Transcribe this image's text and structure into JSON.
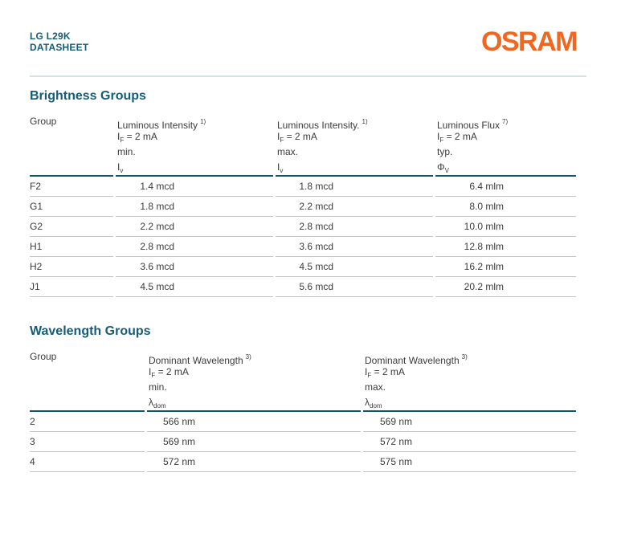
{
  "header": {
    "product": "LG L29K",
    "doc_type": "DATASHEET",
    "brand": "OSRAM"
  },
  "colors": {
    "teal": "#155d76",
    "orange": "#f2671f",
    "dark": "#14566c",
    "light": "#c6c6c6",
    "text": "#3b3b3b",
    "divider": "#d9e0e4"
  },
  "brightness": {
    "title": "Brightness Groups",
    "columns": [
      {
        "label": "Group"
      },
      {
        "title": "Luminous Intensity",
        "footnote": "1)",
        "cond_sym": "I",
        "cond_sub": "F",
        "cond_rest": " = 2 mA",
        "limit": "min.",
        "sym": "I",
        "sym_sub": "v"
      },
      {
        "title": "Luminous Intensity.",
        "footnote": "1)",
        "cond_sym": "I",
        "cond_sub": "F",
        "cond_rest": " = 2 mA",
        "limit": "max.",
        "sym": "I",
        "sym_sub": "v"
      },
      {
        "title": "Luminous Flux",
        "footnote": "7)",
        "cond_sym": "I",
        "cond_sub": "F",
        "cond_rest": " = 2 mA",
        "limit": "typ.",
        "sym": "Φ",
        "sym_sub": "V"
      }
    ],
    "rows": [
      {
        "group": "F2",
        "min": "1.4 mcd",
        "max": "1.8 mcd",
        "flux": "6.4 mlm"
      },
      {
        "group": "G1",
        "min": "1.8 mcd",
        "max": "2.2 mcd",
        "flux": "8.0 mlm"
      },
      {
        "group": "G2",
        "min": "2.2 mcd",
        "max": "2.8 mcd",
        "flux": "10.0 mlm"
      },
      {
        "group": "H1",
        "min": "2.8 mcd",
        "max": "3.6 mcd",
        "flux": "12.8 mlm"
      },
      {
        "group": "H2",
        "min": "3.6 mcd",
        "max": "4.5 mcd",
        "flux": "16.2 mlm"
      },
      {
        "group": "J1",
        "min": "4.5 mcd",
        "max": "5.6 mcd",
        "flux": "20.2 mlm"
      }
    ]
  },
  "wavelength": {
    "title": "Wavelength Groups",
    "columns": [
      {
        "label": "Group"
      },
      {
        "title": "Dominant Wavelength",
        "footnote": "3)",
        "cond_sym": "I",
        "cond_sub": "F",
        "cond_rest": " = 2 mA",
        "limit": "min.",
        "sym": "λ",
        "sym_sub": "dom"
      },
      {
        "title": "Dominant Wavelength",
        "footnote": "3)",
        "cond_sym": "I",
        "cond_sub": "F",
        "cond_rest": " = 2 mA",
        "limit": "max.",
        "sym": "λ",
        "sym_sub": "dom"
      }
    ],
    "rows": [
      {
        "group": "2",
        "min": "566 nm",
        "max": "569 nm"
      },
      {
        "group": "3",
        "min": "569 nm",
        "max": "572 nm"
      },
      {
        "group": "4",
        "min": "572 nm",
        "max": "575 nm"
      }
    ]
  }
}
